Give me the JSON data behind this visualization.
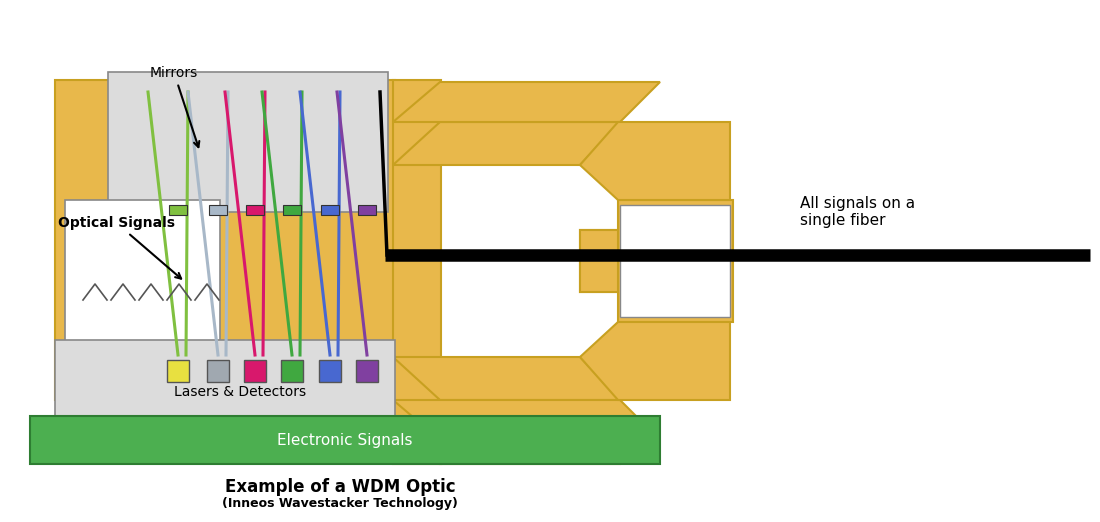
{
  "bg_color": "#ffffff",
  "gold_color": "#E8B84B",
  "gold_edge": "#C8A020",
  "gray_light": "#DCDCDC",
  "gray_edge": "#888888",
  "green_color": "#4CAF50",
  "green_edge": "#2E7D32",
  "white_color": "#FFFFFF",
  "black_color": "#000000",
  "signal_colors": [
    "#80C040",
    "#A8B8C8",
    "#D8186C",
    "#40A840",
    "#4868D0",
    "#8040A0"
  ],
  "laser_colors": [
    "#E8E040",
    "#A0A8B0",
    "#D8186C",
    "#40A840",
    "#4868D0",
    "#8040A0"
  ],
  "title_line1": "Example of a WDM Optic",
  "title_line2": "(Inneos Wavestacker Technology)",
  "label_mirrors": "Mirrors",
  "label_optical": "Optical Signals",
  "label_lasers": "Lasers & Detectors",
  "label_electronic": "Electronic Signals",
  "label_fiber": "All signals on a\nsingle fiber"
}
